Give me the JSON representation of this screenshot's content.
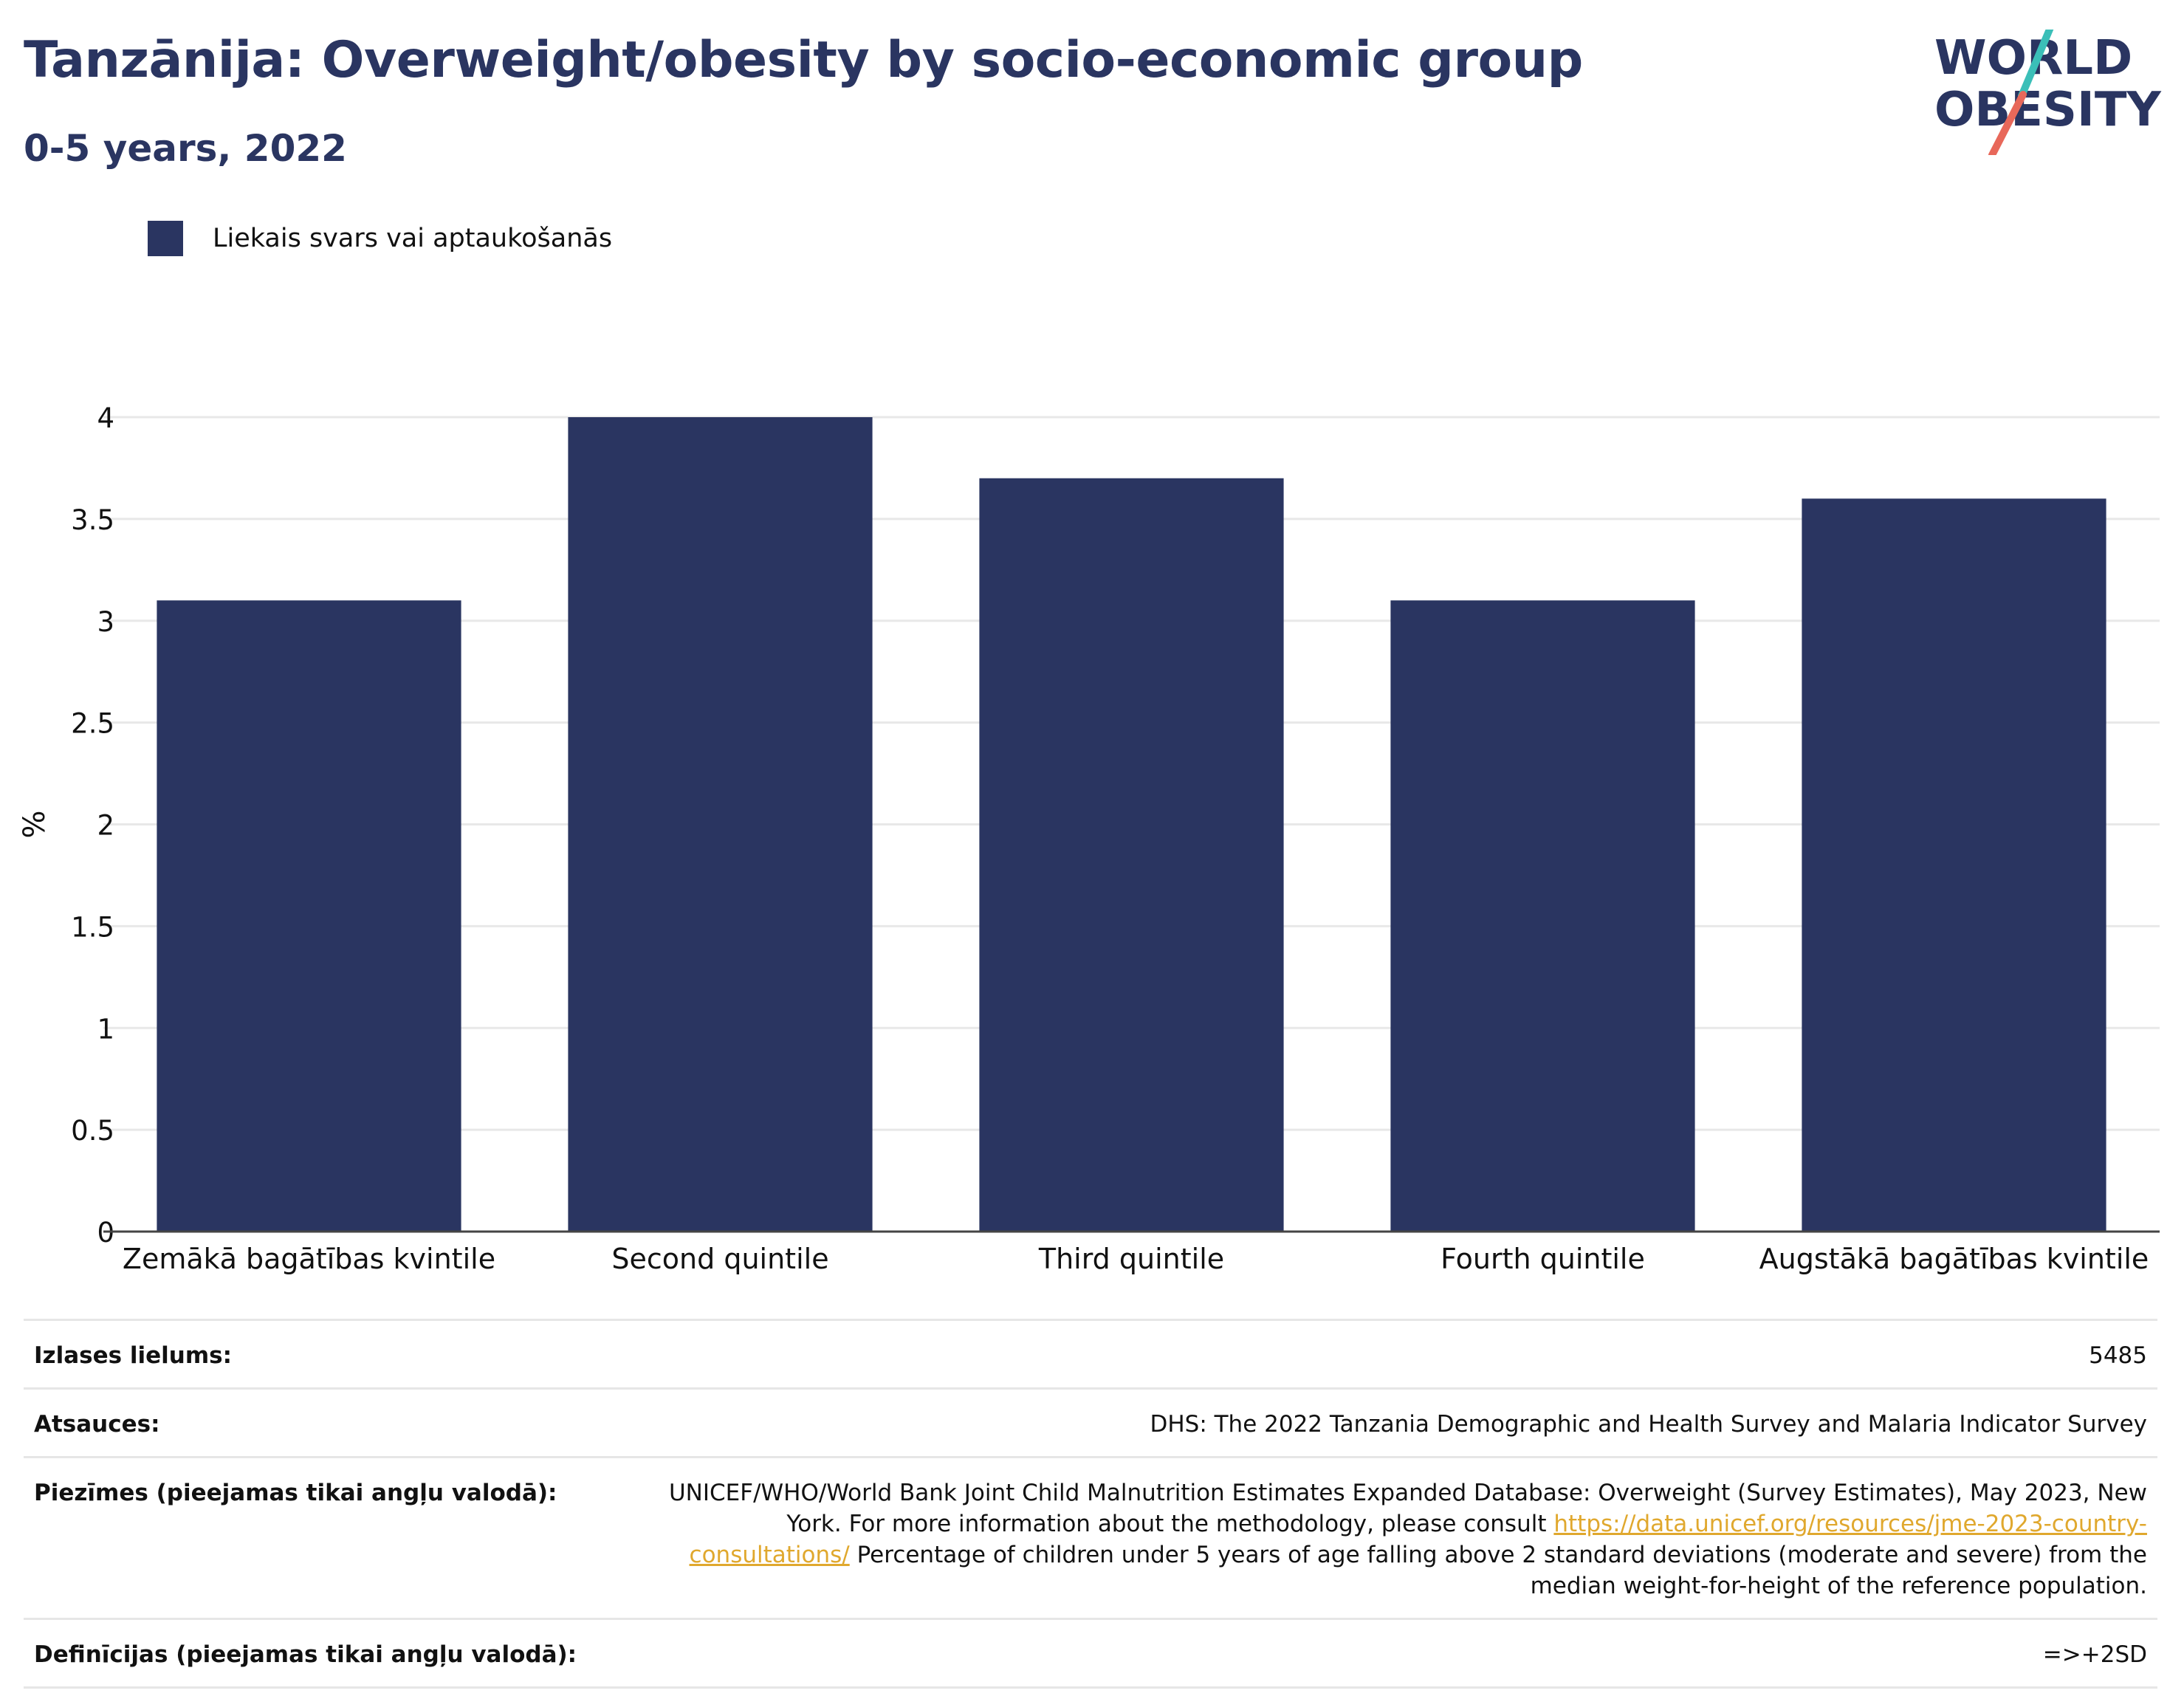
{
  "header": {
    "title": "Tanzānija: Overweight/obesity by socio-economic group",
    "subtitle": "0-5 years, 2022"
  },
  "logo": {
    "line1": "WORLD",
    "line2": "OBESITY",
    "colors": {
      "text": "#2a3561",
      "slash_top": "#3bbfb8",
      "slash_bottom": "#e8685a"
    }
  },
  "chart_data": {
    "type": "bar",
    "categories": [
      "Zemākā bagātības kvintile",
      "Second quintile",
      "Third quintile",
      "Fourth quintile",
      "Augstākā bagātības kvintile"
    ],
    "series": [
      {
        "name": "Liekais svars vai aptaukošanās",
        "values": [
          3.1,
          4.0,
          3.7,
          3.1,
          3.6
        ],
        "color": "#2a3561"
      }
    ],
    "ylabel": "%",
    "xlabel": "",
    "ylim": [
      0,
      4
    ],
    "yticks": [
      0,
      0.5,
      1,
      1.5,
      2,
      2.5,
      3,
      3.5,
      4
    ],
    "grid": true,
    "legend_position": "top-left"
  },
  "meta": {
    "sample_size": {
      "label": "Izlases lielums:",
      "value": "5485"
    },
    "sources": {
      "label": "Atsauces:",
      "value": "DHS: The 2022 Tanzania Demographic and Health Survey and Malaria Indicator Survey"
    },
    "notes": {
      "label": "Piezīmes (pieejamas tikai angļu valodā):",
      "text_before": "UNICEF/WHO/World Bank Joint Child Malnutrition Estimates Expanded Database: Overweight (Survey Estimates), May 2023, New York. For more information about the methodology, please consult ",
      "link": "https://data.unicef.org/resources/jme-2023-country-consultations/",
      "text_after": " Percentage of children under 5 years of age falling above 2 standard deviations (moderate and severe) from the median weight-for-height of the reference population."
    },
    "definitions": {
      "label": "Definīcijas (pieejamas tikai angļu valodā):",
      "value": "=>+2SD"
    }
  }
}
